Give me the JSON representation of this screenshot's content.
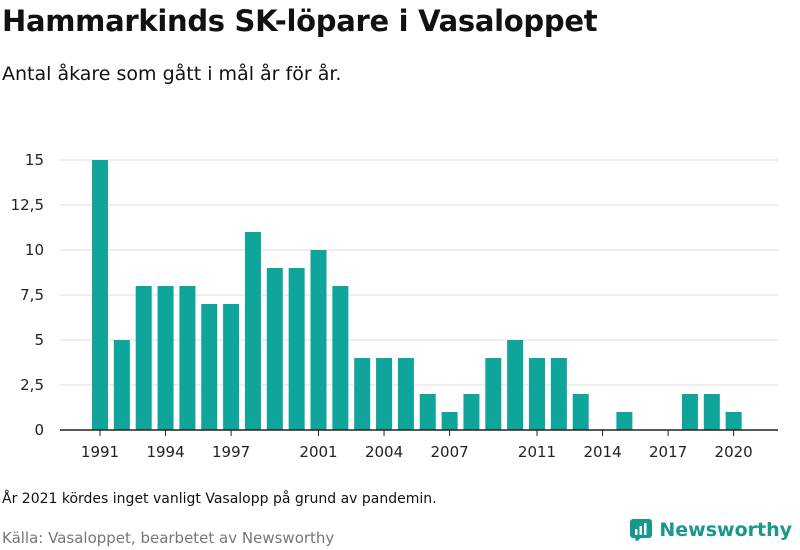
{
  "title": "Hammarkinds SK-löpare i Vasaloppet",
  "subtitle": "Antal åkare som gått i mål år för år.",
  "note": "År 2021 kördes inget vanligt Vasalopp på grund av pandemin.",
  "source": "Källa: Vasaloppet, bearbetet av Newsworthy",
  "brand": {
    "name": "Newsworthy",
    "icon": "newsworthy-logo-icon",
    "color": "#18988b"
  },
  "colors": {
    "bar": "#0fa59b",
    "grid": "#dddddd",
    "axis": "#222222"
  },
  "chart_data": {
    "type": "bar",
    "x": [
      1991,
      1992,
      1993,
      1994,
      1995,
      1996,
      1997,
      1998,
      1999,
      2000,
      2001,
      2002,
      2003,
      2004,
      2005,
      2006,
      2007,
      2008,
      2009,
      2010,
      2011,
      2012,
      2013,
      2014,
      2015,
      2016,
      2017,
      2018,
      2019,
      2020
    ],
    "values": [
      15,
      5,
      8,
      8,
      8,
      7,
      7,
      11,
      9,
      9,
      10,
      8,
      4,
      4,
      4,
      2,
      1,
      2,
      4,
      5,
      4,
      4,
      2,
      0,
      1,
      0,
      0,
      2,
      2,
      1
    ],
    "xticks": [
      1991,
      1994,
      1997,
      2001,
      2004,
      2007,
      2011,
      2014,
      2017,
      2020
    ],
    "yticks": [
      0,
      2.5,
      5,
      7.5,
      10,
      12.5,
      15
    ],
    "ytick_labels": [
      "0",
      "2,5",
      "5",
      "7,5",
      "10",
      "12,5",
      "15"
    ],
    "ylim": [
      0,
      15
    ],
    "xlabel": "",
    "ylabel": "",
    "grid": true
  }
}
